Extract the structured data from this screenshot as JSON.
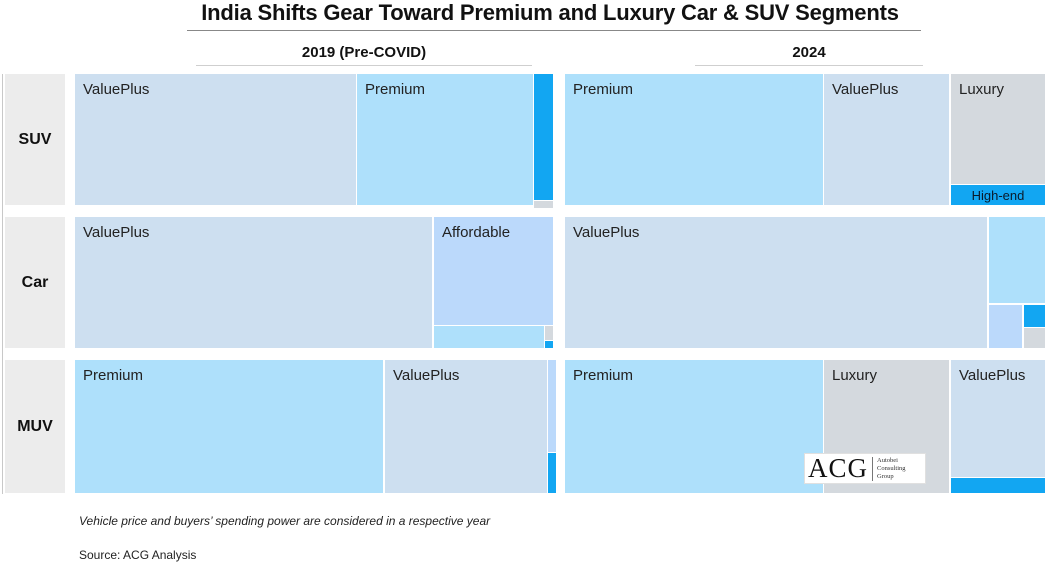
{
  "title": "India Shifts Gear Toward Premium and Luxury Car & SUV Segments",
  "columns": [
    "2019 (Pre-COVID)",
    "2024"
  ],
  "rows": [
    "SUV",
    "Car",
    "MUV"
  ],
  "colors": {
    "valueplus": "#cddff0",
    "premium": "#aee0fb",
    "affordable": "#bbd9fb",
    "luxury": "#d4d9de",
    "high_end": "#12a6f2",
    "label_bg": "#ececec"
  },
  "chart_data": {
    "type": "treemap",
    "title": "India Shifts Gear Toward Premium and Luxury Car & SUV Segments",
    "panels": [
      {
        "row": "SUV",
        "year": "2019 (Pre-COVID)",
        "segments": [
          {
            "name": "ValuePlus",
            "share": 0.58
          },
          {
            "name": "Premium",
            "share": 0.37
          },
          {
            "name": "",
            "share": 0.04
          },
          {
            "name": "",
            "share": 0.01
          }
        ]
      },
      {
        "row": "Car",
        "year": "2019 (Pre-COVID)",
        "segments": [
          {
            "name": "ValuePlus",
            "share": 0.75
          },
          {
            "name": "Affordable",
            "share": 0.19
          },
          {
            "name": "",
            "share": 0.04
          },
          {
            "name": "",
            "share": 0.01
          },
          {
            "name": "",
            "share": 0.01
          }
        ]
      },
      {
        "row": "MUV",
        "year": "2019 (Pre-COVID)",
        "segments": [
          {
            "name": "Premium",
            "share": 0.64
          },
          {
            "name": "ValuePlus",
            "share": 0.34
          },
          {
            "name": "",
            "share": 0.01
          },
          {
            "name": "",
            "share": 0.01
          }
        ]
      },
      {
        "row": "SUV",
        "year": "2024",
        "segments": [
          {
            "name": "Premium",
            "share": 0.54
          },
          {
            "name": "ValuePlus",
            "share": 0.27
          },
          {
            "name": "Luxury",
            "share": 0.14
          },
          {
            "name": "High-end",
            "share": 0.05
          }
        ]
      },
      {
        "row": "Car",
        "year": "2024",
        "segments": [
          {
            "name": "ValuePlus",
            "share": 0.88
          },
          {
            "name": "",
            "share": 0.06
          },
          {
            "name": "",
            "share": 0.04
          },
          {
            "name": "",
            "share": 0.01
          },
          {
            "name": "",
            "share": 0.01
          }
        ]
      },
      {
        "row": "MUV",
        "year": "2024",
        "segments": [
          {
            "name": "Premium",
            "share": 0.54
          },
          {
            "name": "Luxury",
            "share": 0.26
          },
          {
            "name": "ValuePlus",
            "share": 0.17
          },
          {
            "name": "",
            "share": 0.03
          }
        ]
      }
    ]
  },
  "logo": {
    "mark": "ACG",
    "line1": "Autobei",
    "line2": "Consulting",
    "line3": "Group"
  },
  "footnote": "Vehicle price and buyers’ spending power are considered in a respective year",
  "source": "Source: ACG Analysis"
}
